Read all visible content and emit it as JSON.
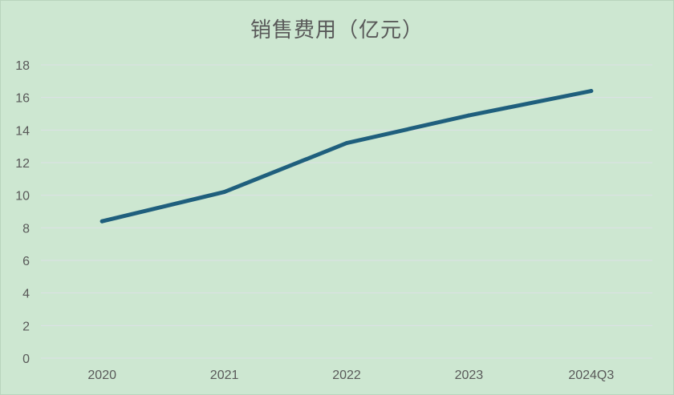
{
  "chart_data": {
    "type": "line",
    "title": "销售费用（亿元）",
    "xlabel": "",
    "ylabel": "",
    "categories": [
      "2020",
      "2021",
      "2022",
      "2023",
      "2024Q3"
    ],
    "series": [
      {
        "values": [
          8.4,
          10.2,
          13.2,
          14.9,
          16.4
        ]
      }
    ],
    "ylim": [
      0,
      18
    ],
    "yticks": [
      "0",
      "2",
      "4",
      "6",
      "8",
      "10",
      "12",
      "14",
      "16",
      "18"
    ],
    "grid": true,
    "legend": "none",
    "colors": {
      "background": "#cde7d1",
      "line": "#1f5f7d",
      "grid": "#dde1e6",
      "text": "#595959"
    }
  }
}
